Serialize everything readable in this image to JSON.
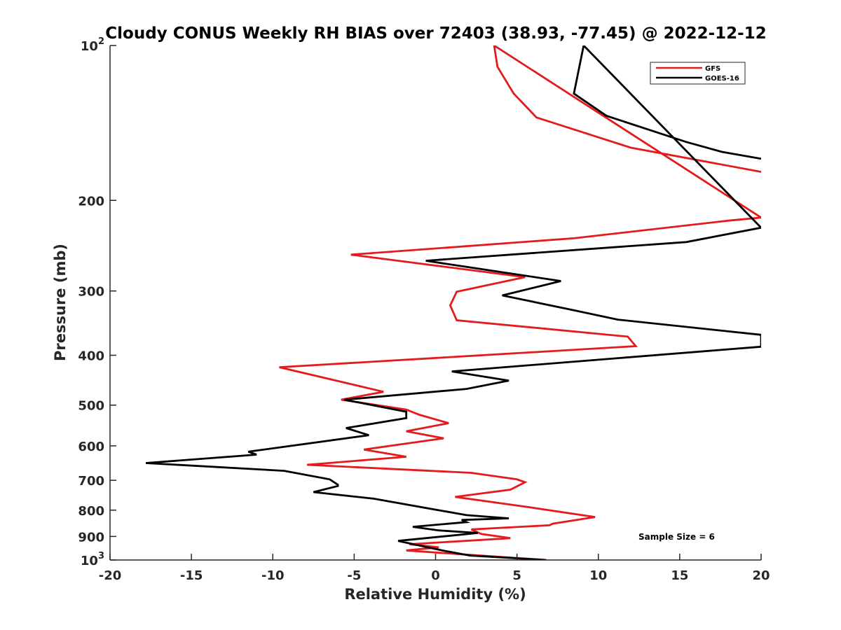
{
  "chart_data": {
    "type": "line",
    "title": "Cloudy CONUS Weekly RH BIAS over 72403 (38.93, -77.45) @ 2022-12-12",
    "xlabel": "Relative Humidity (%)",
    "ylabel": "Pressure (mb)",
    "xlim": [
      -20,
      20
    ],
    "ylim": [
      100,
      1000
    ],
    "y_scale": "log",
    "y_reversed": true,
    "x_ticks": [
      "-20",
      "-15",
      "-10",
      "-5",
      "0",
      "5",
      "10",
      "15",
      "20"
    ],
    "y_ticks": [
      {
        "value": 100,
        "base": "10",
        "exp": "2"
      },
      {
        "value": 200,
        "label": "200"
      },
      {
        "value": 300,
        "label": "300"
      },
      {
        "value": 400,
        "label": "400"
      },
      {
        "value": 500,
        "label": "500"
      },
      {
        "value": 600,
        "label": "600"
      },
      {
        "value": 700,
        "label": "700"
      },
      {
        "value": 800,
        "label": "800"
      },
      {
        "value": 900,
        "label": "900"
      },
      {
        "value": 1000,
        "base": "10",
        "exp": "3"
      }
    ],
    "legend": {
      "position": "top-right"
    },
    "annotation": "Sample Size = 6",
    "series": [
      {
        "name": "GFS",
        "color": "#e41a1c",
        "points": [
          [
            20,
            176
          ],
          [
            12,
            158
          ],
          [
            6.2,
            138
          ],
          [
            4.8,
            124
          ],
          [
            3.8,
            110
          ],
          [
            3.6,
            100
          ],
          [
            20,
            216
          ],
          [
            18,
            219
          ],
          [
            8.5,
            237
          ],
          [
            -5.2,
            255
          ],
          [
            5.5,
            282
          ],
          [
            1.3,
            301
          ],
          [
            0.9,
            320
          ],
          [
            1.3,
            342
          ],
          [
            11.8,
            368
          ],
          [
            12.3,
            384
          ],
          [
            -9.6,
            422
          ],
          [
            -5.6,
            452
          ],
          [
            -3.2,
            471
          ],
          [
            -5.8,
            488
          ],
          [
            -1.8,
            510
          ],
          [
            -1.0,
            522
          ],
          [
            0.8,
            542
          ],
          [
            -1.8,
            562
          ],
          [
            0.5,
            580
          ],
          [
            -4.4,
            610
          ],
          [
            -1.8,
            630
          ],
          [
            -7.9,
            653
          ],
          [
            2.2,
            677
          ],
          [
            5.0,
            697
          ],
          [
            5.5,
            706
          ],
          [
            4.6,
            730
          ],
          [
            1.2,
            754
          ],
          [
            5.8,
            790
          ],
          [
            9.8,
            825
          ],
          [
            7.2,
            850
          ],
          [
            7.0,
            856
          ],
          [
            2.2,
            872
          ],
          [
            2.8,
            890
          ],
          [
            4.6,
            907
          ],
          [
            -1.6,
            932
          ],
          [
            0.2,
            945
          ],
          [
            -1.8,
            958
          ],
          [
            1.0,
            972
          ],
          [
            6.8,
            1000
          ]
        ]
      },
      {
        "name": "GOES-16",
        "color": "#000000",
        "points": [
          [
            20,
            166
          ],
          [
            17.6,
            161
          ],
          [
            15.4,
            154
          ],
          [
            10.5,
            137
          ],
          [
            8.5,
            124
          ],
          [
            9.1,
            100
          ],
          [
            20,
            226
          ],
          [
            15.4,
            241
          ],
          [
            -0.6,
            262
          ],
          [
            7.7,
            287
          ],
          [
            4.1,
            306
          ],
          [
            8.5,
            327
          ],
          [
            11.2,
            341
          ],
          [
            20,
            365
          ],
          [
            20,
            385
          ],
          [
            1.0,
            430
          ],
          [
            4.5,
            448
          ],
          [
            1.9,
            465
          ],
          [
            -5.6,
            488
          ],
          [
            -1.8,
            515
          ],
          [
            -1.8,
            530
          ],
          [
            -5.5,
            554
          ],
          [
            -4.1,
            572
          ],
          [
            -11.5,
            616
          ],
          [
            -11.0,
            624
          ],
          [
            -17.8,
            648
          ],
          [
            -9.3,
            671
          ],
          [
            -6.5,
            697
          ],
          [
            -6.0,
            714
          ],
          [
            -6.0,
            718
          ],
          [
            -7.5,
            738
          ],
          [
            -3.8,
            760
          ],
          [
            1.9,
            818
          ],
          [
            4.5,
            830
          ],
          [
            1.6,
            836
          ],
          [
            1.9,
            844
          ],
          [
            -1.4,
            862
          ],
          [
            0.2,
            876
          ],
          [
            2.6,
            886
          ],
          [
            -2.3,
            918
          ],
          [
            -1.0,
            937
          ],
          [
            0.4,
            958
          ],
          [
            2.1,
            980
          ],
          [
            6.8,
            1000
          ]
        ]
      }
    ]
  }
}
